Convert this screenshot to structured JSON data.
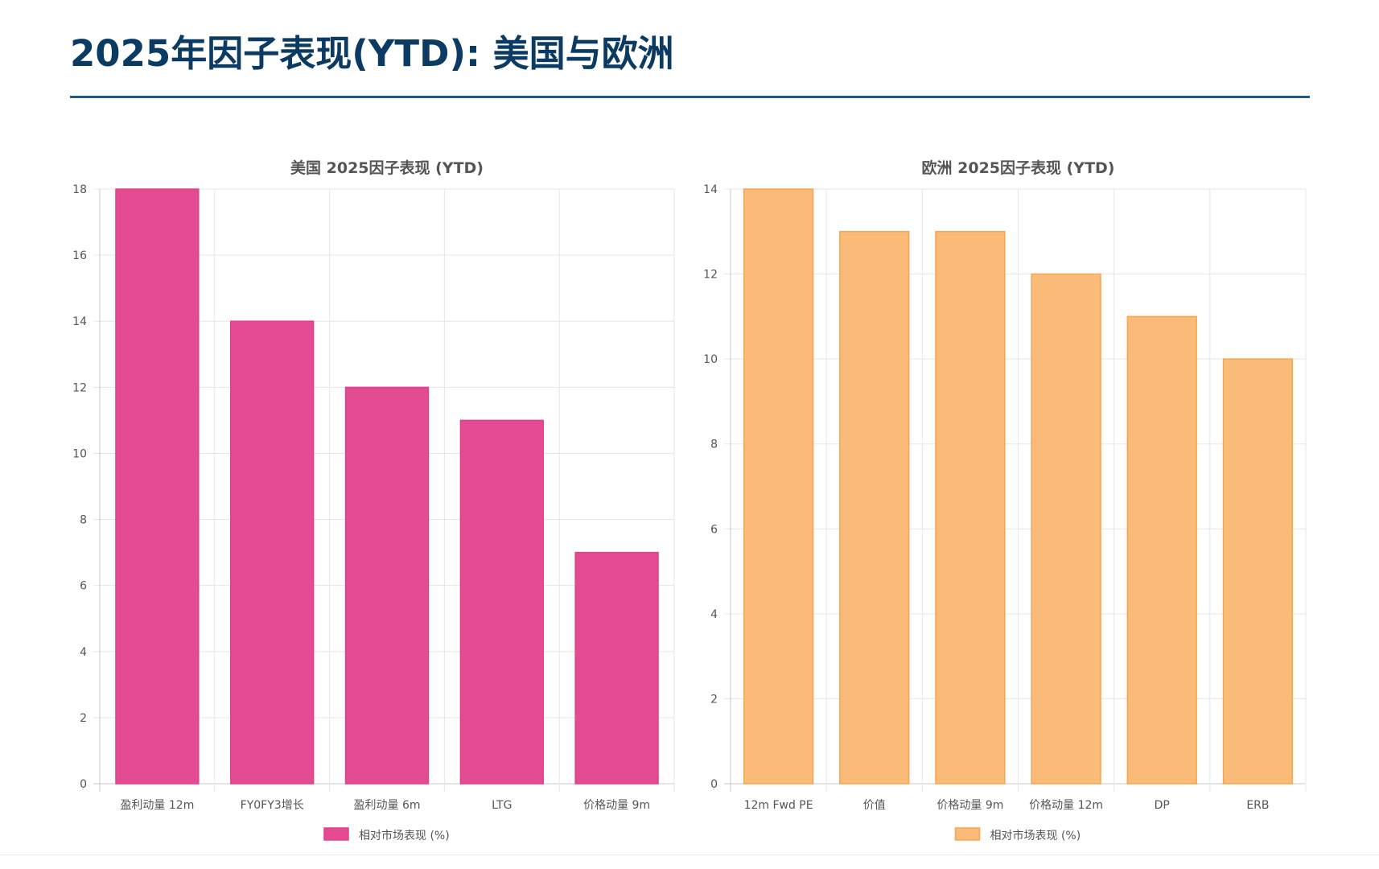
{
  "page": {
    "title": "2025年因子表现(YTD): 美国与欧洲"
  },
  "chart_data": [
    {
      "type": "bar",
      "title": "美国 2025因子表现 (YTD)",
      "categories": [
        "盈利动量 12m",
        "FY0FY3增长",
        "盈利动量 6m",
        "LTG",
        "价格动量 9m"
      ],
      "series": [
        {
          "name": "相对市场表现 (%)",
          "values": [
            18,
            14,
            12,
            11,
            7
          ]
        }
      ],
      "ylim": [
        0,
        18
      ],
      "yticks": [
        0,
        2,
        4,
        6,
        8,
        10,
        12,
        14,
        16,
        18
      ],
      "grid": true,
      "legend": "bottom-center",
      "color": "#e0408a",
      "fill": "#e34c92",
      "xlabel": "",
      "ylabel": ""
    },
    {
      "type": "bar",
      "title": "欧洲 2025因子表现 (YTD)",
      "categories": [
        "12m Fwd PE",
        "价值",
        "价格动量 9m",
        "价格动量 12m",
        "DP",
        "ERB"
      ],
      "series": [
        {
          "name": "相对市场表现 (%)",
          "values": [
            14,
            13,
            13,
            12,
            11,
            10
          ]
        }
      ],
      "ylim": [
        0,
        14
      ],
      "yticks": [
        0,
        2,
        4,
        6,
        8,
        10,
        12,
        14
      ],
      "grid": true,
      "legend": "bottom-center",
      "color": "#f3a64f",
      "fill": "#fbbb78",
      "xlabel": "",
      "ylabel": ""
    }
  ]
}
